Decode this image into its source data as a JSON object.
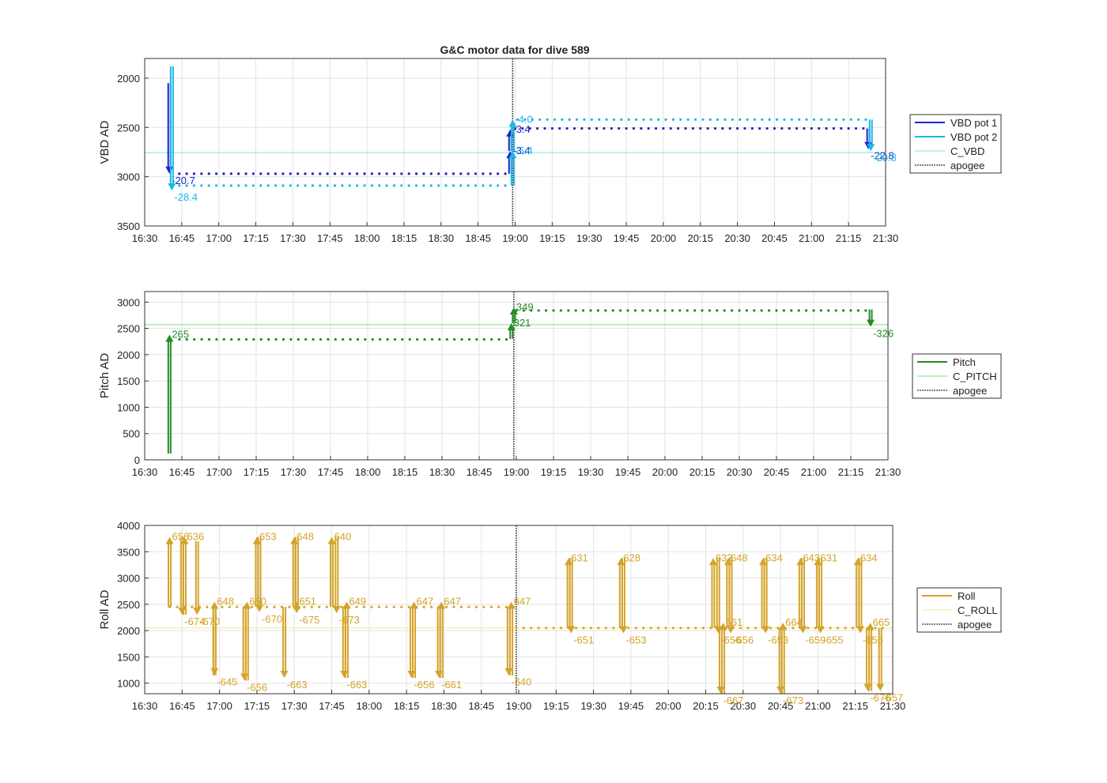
{
  "figure": {
    "title": "G&C motor data for dive 589"
  },
  "colors": {
    "vbd1": "#1a24c8",
    "vbd2": "#1ab8e8",
    "cvbd": "#7fe3ea",
    "pitch": "#228b22",
    "cpitch": "#7fdc7f",
    "roll": "#d4a32a",
    "croll": "#f3e98a",
    "apogee": "#555555"
  },
  "x_ticks": [
    "16:30",
    "16:45",
    "17:00",
    "17:15",
    "17:30",
    "17:45",
    "18:00",
    "18:15",
    "18:30",
    "18:45",
    "19:00",
    "19:15",
    "19:30",
    "19:45",
    "20:00",
    "20:15",
    "20:30",
    "20:45",
    "21:00",
    "21:15",
    "21:30"
  ],
  "chart_data": [
    {
      "type": "line",
      "ylabel": "VBD AD",
      "xlim": [
        "16:30",
        "21:30"
      ],
      "ylim": [
        3500,
        1800
      ],
      "y_reversed": true,
      "y_ticks": [
        2000,
        2500,
        3000,
        3500
      ],
      "grid": true,
      "legend_position": "right",
      "apogee_time": "18:59",
      "series": [
        {
          "name": "VBD pot 1",
          "color_key": "vbd1",
          "style": "dotted-trace",
          "segments": [
            {
              "t_start": "16:44",
              "t_end": "18:58",
              "value": 2970
            },
            {
              "t_start": "19:00",
              "t_end": "21:23",
              "value": 2510
            }
          ],
          "moves": [
            {
              "t": "16:40",
              "from": 2050,
              "to": 2970,
              "label": "-20.7"
            },
            {
              "t": "18:58",
              "from": 2970,
              "to": 2740,
              "label": "-3.4"
            },
            {
              "t": "18:58",
              "from": 2740,
              "to": 2520,
              "label": "-3.4"
            },
            {
              "t": "21:23",
              "from": 2510,
              "to": 2720,
              "label": "-22.8"
            }
          ]
        },
        {
          "name": "VBD pot 2",
          "color_key": "vbd2",
          "style": "dotted-trace",
          "segments": [
            {
              "t_start": "16:44",
              "t_end": "18:58",
              "value": 3090
            },
            {
              "t_start": "19:01",
              "t_end": "21:24",
              "value": 2420
            }
          ],
          "moves": [
            {
              "t": "16:41",
              "from": 1880,
              "to": 3140,
              "label": "-28.4"
            },
            {
              "t": "18:59",
              "from": 3090,
              "to": 2740,
              "label": "-5.4"
            },
            {
              "t": "18:59",
              "from": 2740,
              "to": 2420,
              "label": "-4.0"
            },
            {
              "t": "21:24",
              "from": 2420,
              "to": 2740,
              "label": "-29.8"
            }
          ]
        },
        {
          "name": "C_VBD",
          "color_key": "cvbd",
          "style": "constant",
          "value": 2755
        },
        {
          "name": "apogee",
          "color_key": "apogee",
          "style": "vline"
        }
      ]
    },
    {
      "type": "line",
      "ylabel": "Pitch AD",
      "xlim": [
        "16:30",
        "21:30"
      ],
      "ylim": [
        0,
        3200
      ],
      "y_ticks": [
        0,
        500,
        1000,
        1500,
        2000,
        2500,
        3000
      ],
      "grid": true,
      "legend_position": "right",
      "apogee_time": "18:59",
      "series": [
        {
          "name": "Pitch",
          "color_key": "pitch",
          "style": "dotted-trace",
          "segments": [
            {
              "t_start": "16:44",
              "t_end": "18:58",
              "value": 2290
            },
            {
              "t_start": "19:00",
              "t_end": "21:23",
              "value": 2840
            }
          ],
          "moves": [
            {
              "t": "16:40",
              "from": 120,
              "to": 2380,
              "label": "265"
            },
            {
              "t": "18:58",
              "from": 2300,
              "to": 2600,
              "label": "321"
            },
            {
              "t": "18:59",
              "from": 2600,
              "to": 2900,
              "label": "349"
            },
            {
              "t": "21:23",
              "from": 2860,
              "to": 2530,
              "label": "-326"
            }
          ]
        },
        {
          "name": "C_PITCH",
          "color_key": "cpitch",
          "style": "constant",
          "value": 2570
        },
        {
          "name": "apogee",
          "color_key": "apogee",
          "style": "vline"
        }
      ]
    },
    {
      "type": "line",
      "ylabel": "Roll AD",
      "xlim": [
        "16:30",
        "21:30"
      ],
      "ylim": [
        800,
        4000
      ],
      "y_ticks": [
        1000,
        1500,
        2000,
        2500,
        3000,
        3500,
        4000
      ],
      "grid": true,
      "legend_position": "right",
      "apogee_time": "18:59",
      "series": [
        {
          "name": "Roll",
          "color_key": "roll",
          "style": "dotted-trace",
          "segments": [
            {
              "t_start": "16:40",
              "t_end": "18:59",
              "value": 2450
            },
            {
              "t_start": "18:59",
              "t_end": "21:27",
              "value": 2050
            }
          ],
          "moves": [
            {
              "t": "16:40",
              "from": 2450,
              "to": 3780,
              "label": "656"
            },
            {
              "t": "16:45",
              "from": 3780,
              "to": 2300,
              "label": "-674"
            },
            {
              "t": "16:46",
              "from": 2300,
              "to": 3780,
              "label": "636"
            },
            {
              "t": "16:51",
              "from": 3700,
              "to": 2300,
              "label": "-670"
            },
            {
              "t": "16:58",
              "from": 2450,
              "to": 1150,
              "label": "-645"
            },
            {
              "t": "16:58",
              "from": 1150,
              "to": 2550,
              "label": "648"
            },
            {
              "t": "17:10",
              "from": 2450,
              "to": 1050,
              "label": "-656"
            },
            {
              "t": "17:11",
              "from": 1050,
              "to": 2550,
              "label": "650"
            },
            {
              "t": "17:15",
              "from": 2450,
              "to": 3780,
              "label": "653"
            },
            {
              "t": "17:16",
              "from": 3780,
              "to": 2350,
              "label": "-670"
            },
            {
              "t": "17:26",
              "from": 2450,
              "to": 1100,
              "label": "-663"
            },
            {
              "t": "17:30",
              "from": 2450,
              "to": 3780,
              "label": "648"
            },
            {
              "t": "17:31",
              "from": 2400,
              "to": 2550,
              "label": "651"
            },
            {
              "t": "17:31",
              "from": 3780,
              "to": 2330,
              "label": "-675"
            },
            {
              "t": "17:45",
              "from": 2450,
              "to": 3780,
              "label": "640"
            },
            {
              "t": "17:47",
              "from": 3780,
              "to": 2330,
              "label": "-673"
            },
            {
              "t": "17:50",
              "from": 2450,
              "to": 1100,
              "label": "-663"
            },
            {
              "t": "17:51",
              "from": 1100,
              "to": 2550,
              "label": "649"
            },
            {
              "t": "18:17",
              "from": 2450,
              "to": 1100,
              "label": "-656"
            },
            {
              "t": "18:18",
              "from": 1100,
              "to": 2550,
              "label": "647"
            },
            {
              "t": "18:28",
              "from": 2450,
              "to": 1100,
              "label": "-661"
            },
            {
              "t": "18:29",
              "from": 1100,
              "to": 2550,
              "label": "647"
            },
            {
              "t": "18:56",
              "from": 2450,
              "to": 1150,
              "label": "-640"
            },
            {
              "t": "18:57",
              "from": 1150,
              "to": 2550,
              "label": "647"
            },
            {
              "t": "19:20",
              "from": 2050,
              "to": 3380,
              "label": "631"
            },
            {
              "t": "19:21",
              "from": 3380,
              "to": 1950,
              "label": "-651"
            },
            {
              "t": "19:41",
              "from": 2050,
              "to": 3380,
              "label": "628"
            },
            {
              "t": "19:42",
              "from": 3380,
              "to": 1950,
              "label": "-653"
            },
            {
              "t": "20:18",
              "from": 2050,
              "to": 3380,
              "label": "633"
            },
            {
              "t": "20:20",
              "from": 3380,
              "to": 1950,
              "label": "-656"
            },
            {
              "t": "20:21",
              "from": 2050,
              "to": 800,
              "label": "-667"
            },
            {
              "t": "20:22",
              "from": 800,
              "to": 2150,
              "label": "661"
            },
            {
              "t": "20:24",
              "from": 2050,
              "to": 3380,
              "label": "648"
            },
            {
              "t": "20:25",
              "from": 3380,
              "to": 1950,
              "label": "-656"
            },
            {
              "t": "20:38",
              "from": 2050,
              "to": 3380,
              "label": "634"
            },
            {
              "t": "20:39",
              "from": 3380,
              "to": 1950,
              "label": "-653"
            },
            {
              "t": "20:45",
              "from": 2050,
              "to": 800,
              "label": "-673"
            },
            {
              "t": "20:46",
              "from": 800,
              "to": 2150,
              "label": "664"
            },
            {
              "t": "20:53",
              "from": 2050,
              "to": 3380,
              "label": "643"
            },
            {
              "t": "20:54",
              "from": 3380,
              "to": 1950,
              "label": "-659"
            },
            {
              "t": "21:00",
              "from": 2050,
              "to": 3380,
              "label": "631"
            },
            {
              "t": "21:01",
              "from": 3380,
              "to": 1950,
              "label": "-655"
            },
            {
              "t": "21:16",
              "from": 2050,
              "to": 3380,
              "label": "634"
            },
            {
              "t": "21:17",
              "from": 3380,
              "to": 1950,
              "label": "-656"
            },
            {
              "t": "21:20",
              "from": 2050,
              "to": 850,
              "label": "-676"
            },
            {
              "t": "21:21",
              "from": 850,
              "to": 2150,
              "label": "665"
            },
            {
              "t": "21:25",
              "from": 2050,
              "to": 850,
              "label": "-657"
            }
          ]
        },
        {
          "name": "C_ROLL",
          "color_key": "croll",
          "style": "constant",
          "value": 2050
        },
        {
          "name": "apogee",
          "color_key": "apogee",
          "style": "vline"
        }
      ]
    }
  ]
}
